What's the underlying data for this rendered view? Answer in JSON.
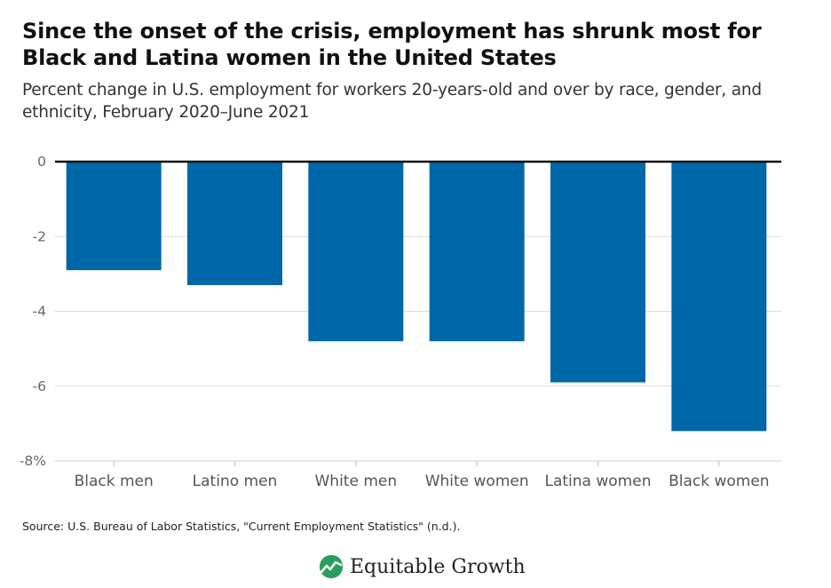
{
  "title": "Since the onset of the crisis, employment has shrunk most for Black and Latina women in the United States",
  "subtitle": "Percent change in U.S. employment for workers 20-years-old and over by race, gender, and ethnicity, February 2020–June 2021",
  "source": "Source: U.S. Bureau of Labor Statistics, \"Current Employment Statistics\" (n.d.).",
  "brand": {
    "name": "Equitable Growth",
    "logo_icon": "growth-leaf-icon"
  },
  "chart_data": {
    "type": "bar",
    "categories": [
      "Black men",
      "Latino men",
      "White men",
      "White women",
      "Latina women",
      "Black women"
    ],
    "values": [
      -2.9,
      -3.3,
      -4.8,
      -4.8,
      -5.9,
      -7.2
    ],
    "ylim": [
      -8,
      0
    ],
    "yticks": [
      0,
      -2,
      -4,
      -6,
      -8
    ],
    "ytick_labels": [
      "0",
      "-2",
      "-4",
      "-6",
      "-8%"
    ],
    "bar_color": "#0068a8",
    "grid": true
  }
}
